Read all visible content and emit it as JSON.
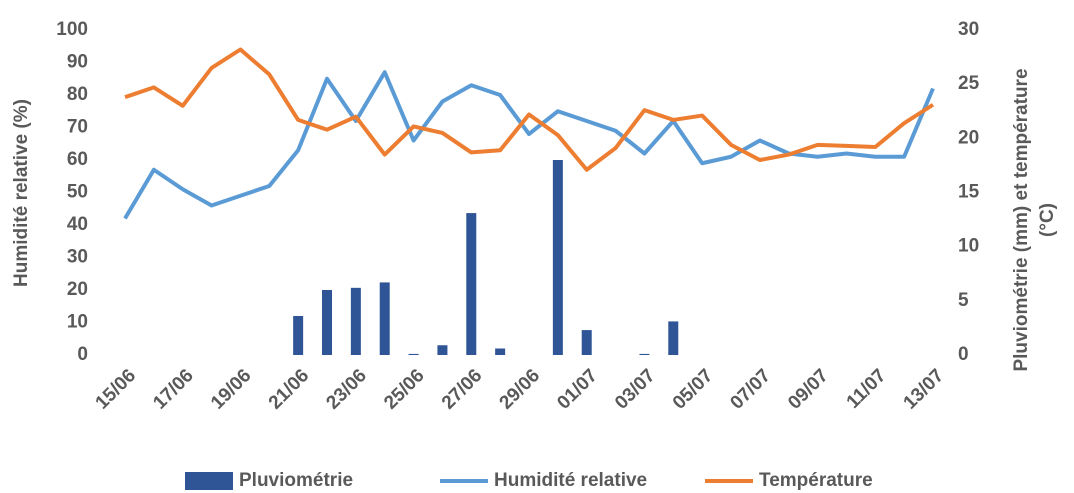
{
  "chart_data": {
    "type": "bar-line",
    "categories": [
      "15/06",
      null,
      "17/06",
      null,
      "19/06",
      null,
      "21/06",
      null,
      "23/06",
      null,
      "25/06",
      null,
      "27/06",
      null,
      "29/06",
      null,
      "01/07",
      null,
      "03/07",
      null,
      "05/07",
      null,
      "07/07",
      null,
      "09/07",
      null,
      "11/07",
      null,
      "13/07"
    ],
    "ylabel": "Humidité relative (%)",
    "y2label": [
      "Pluviométrie (mm) et température",
      "(°C)"
    ],
    "ylim": [
      0,
      100
    ],
    "yticks": [
      0,
      10,
      20,
      30,
      40,
      50,
      60,
      70,
      80,
      90,
      100
    ],
    "y2lim": [
      0,
      30
    ],
    "y2ticks": [
      0,
      5,
      10,
      15,
      20,
      25,
      30
    ],
    "series": [
      {
        "name": "Pluviométrie",
        "type": "bar",
        "axis": "y2",
        "color": "#2f5597",
        "values": [
          0,
          0,
          0,
          0,
          0,
          0,
          3.6,
          6.0,
          6.2,
          6.7,
          0.1,
          0.9,
          13.1,
          0.6,
          0,
          18,
          2.3,
          0,
          0.1,
          3.1,
          0,
          0,
          0,
          0,
          0,
          0,
          0,
          0,
          0
        ]
      },
      {
        "name": "Humidité relative",
        "type": "line",
        "axis": "y",
        "color": "#5b9bd5",
        "values": [
          42,
          57,
          51,
          46,
          49,
          52,
          63,
          85,
          72,
          87,
          66,
          78,
          83,
          80,
          68,
          75,
          72,
          69,
          62,
          72,
          59,
          61,
          66,
          62,
          61,
          62,
          61,
          61,
          82
        ]
      },
      {
        "name": "Température",
        "type": "line",
        "axis": "y2",
        "color": "#ed7d31",
        "values": [
          23.8,
          24.7,
          23,
          26.5,
          28.2,
          25.9,
          21.7,
          20.8,
          22,
          18.5,
          21.1,
          20.5,
          18.7,
          18.9,
          22.2,
          20.3,
          17.1,
          19.1,
          22.6,
          21.7,
          22.1,
          19.4,
          18,
          18.5,
          19.4,
          19.3,
          19.2,
          21.4,
          23.1
        ]
      }
    ]
  }
}
